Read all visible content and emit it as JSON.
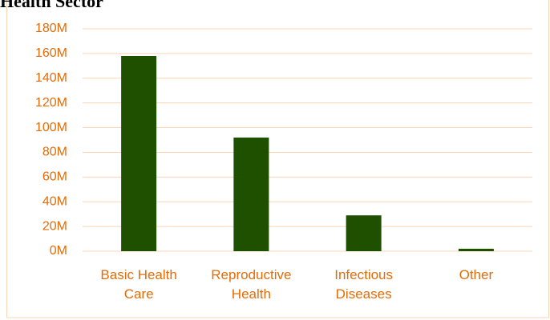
{
  "chart_data": {
    "type": "bar",
    "title": "Health Sector",
    "categories": [
      "Basic Health Care",
      "Reproductive Health",
      "Infectious Diseases",
      "Other"
    ],
    "values": [
      158,
      92,
      29,
      2
    ],
    "color": "#1e5000",
    "ylim": [
      0,
      180
    ],
    "yticks": [
      {
        "value": 0,
        "label": "0M"
      },
      {
        "value": 20,
        "label": "20M"
      },
      {
        "value": 40,
        "label": "40M"
      },
      {
        "value": 60,
        "label": "60M"
      },
      {
        "value": 80,
        "label": "80M"
      },
      {
        "value": 100,
        "label": "100M"
      },
      {
        "value": 120,
        "label": "120M"
      },
      {
        "value": 140,
        "label": "140M"
      },
      {
        "value": 160,
        "label": "160M"
      },
      {
        "value": 180,
        "label": "180M"
      }
    ],
    "grid": true
  }
}
